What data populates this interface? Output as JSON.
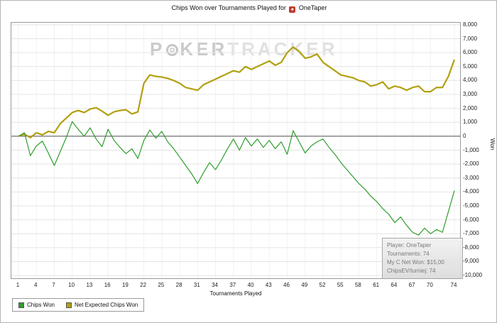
{
  "title": {
    "prefix": "Chips Won over Tournaments Played for",
    "player": "OneTaper",
    "icon_glyph": "♠"
  },
  "watermark": {
    "part1": "P",
    "part2": "KER",
    "part3": "TRACKER"
  },
  "axes": {
    "xlabel": "Tournaments Played",
    "ylabel": "Won"
  },
  "tooltip": {
    "lines": [
      "Player: OneTaper",
      "Tournaments: 74",
      "My C Net Won: $15,00",
      "ChipsEV/turniej: 74"
    ]
  },
  "legend": {
    "items": [
      {
        "label": "Chips Won",
        "color": "#2e9e2e"
      },
      {
        "label": "Net Expected Chips Won",
        "color": "#b2a011"
      }
    ]
  },
  "colors": {
    "grid_h": "#e4e4e4",
    "grid_v": "#f2f2f2",
    "zero_line": "#4a4a4a",
    "plot_border": "#9a9a9a",
    "title_icon": "#c23b2e"
  },
  "chart_data": {
    "type": "line",
    "title": "Chips Won over Tournaments Played for OneTaper",
    "xlabel": "Tournaments Played",
    "ylabel": "Won",
    "grid": true,
    "legend_position": "bottom-left",
    "ylim": [
      -10200,
      8150
    ],
    "xticks": [
      1,
      4,
      7,
      10,
      13,
      16,
      19,
      22,
      25,
      28,
      31,
      34,
      37,
      40,
      43,
      46,
      49,
      52,
      55,
      58,
      61,
      64,
      67,
      70,
      74
    ],
    "yticks": [
      8000,
      7000,
      6000,
      5000,
      4000,
      3000,
      2000,
      1000,
      0,
      -1000,
      -2000,
      -3000,
      -4000,
      -5000,
      -6000,
      -7000,
      -8000,
      -9000,
      -10000
    ],
    "x": [
      1,
      2,
      3,
      4,
      5,
      6,
      7,
      8,
      9,
      10,
      11,
      12,
      13,
      14,
      15,
      16,
      17,
      18,
      19,
      20,
      21,
      22,
      23,
      24,
      25,
      26,
      27,
      28,
      29,
      30,
      31,
      32,
      33,
      34,
      35,
      36,
      37,
      38,
      39,
      40,
      41,
      42,
      43,
      44,
      45,
      46,
      47,
      48,
      49,
      50,
      51,
      52,
      53,
      54,
      55,
      56,
      57,
      58,
      59,
      60,
      61,
      62,
      63,
      64,
      65,
      66,
      67,
      68,
      69,
      70,
      71,
      72,
      73,
      74
    ],
    "series": [
      {
        "name": "Net Expected Chips Won",
        "color": "#b2a011",
        "width": 2.2,
        "values": [
          0,
          150,
          -100,
          250,
          100,
          350,
          250,
          900,
          1300,
          1700,
          1850,
          1700,
          1950,
          2050,
          1800,
          1500,
          1750,
          1850,
          1900,
          1600,
          1750,
          3800,
          4400,
          4300,
          4250,
          4150,
          4000,
          3800,
          3500,
          3400,
          3300,
          3700,
          3900,
          4100,
          4300,
          4500,
          4700,
          4600,
          5000,
          4800,
          5000,
          5200,
          5400,
          5100,
          5300,
          6000,
          6400,
          6100,
          5600,
          5700,
          5900,
          5300,
          5000,
          4700,
          4400,
          4300,
          4200,
          4000,
          3900,
          3600,
          3700,
          3900,
          3400,
          3600,
          3500,
          3300,
          3500,
          3600,
          3200,
          3200,
          3500,
          3500,
          4300,
          5500
        ]
      },
      {
        "name": "Chips Won",
        "color": "#2e9e2e",
        "width": 1.2,
        "values": [
          0,
          250,
          -1400,
          -700,
          -350,
          -1200,
          -2100,
          -1100,
          -100,
          1050,
          500,
          0,
          600,
          -200,
          -750,
          500,
          -300,
          -800,
          -1250,
          -900,
          -1600,
          -300,
          450,
          -150,
          350,
          -400,
          -900,
          -1500,
          -2100,
          -2700,
          -3400,
          -2600,
          -1900,
          -2400,
          -1700,
          -900,
          -200,
          -1000,
          -100,
          -700,
          -200,
          -800,
          -300,
          -900,
          -400,
          -1300,
          400,
          -400,
          -1200,
          -700,
          -400,
          -200,
          -800,
          -1300,
          -1900,
          -2400,
          -2900,
          -3400,
          -3800,
          -4300,
          -4700,
          -5200,
          -5600,
          -6200,
          -5800,
          -6400,
          -6900,
          -7100,
          -6600,
          -7000,
          -6700,
          -6900,
          -5400,
          -3900
        ]
      }
    ]
  }
}
